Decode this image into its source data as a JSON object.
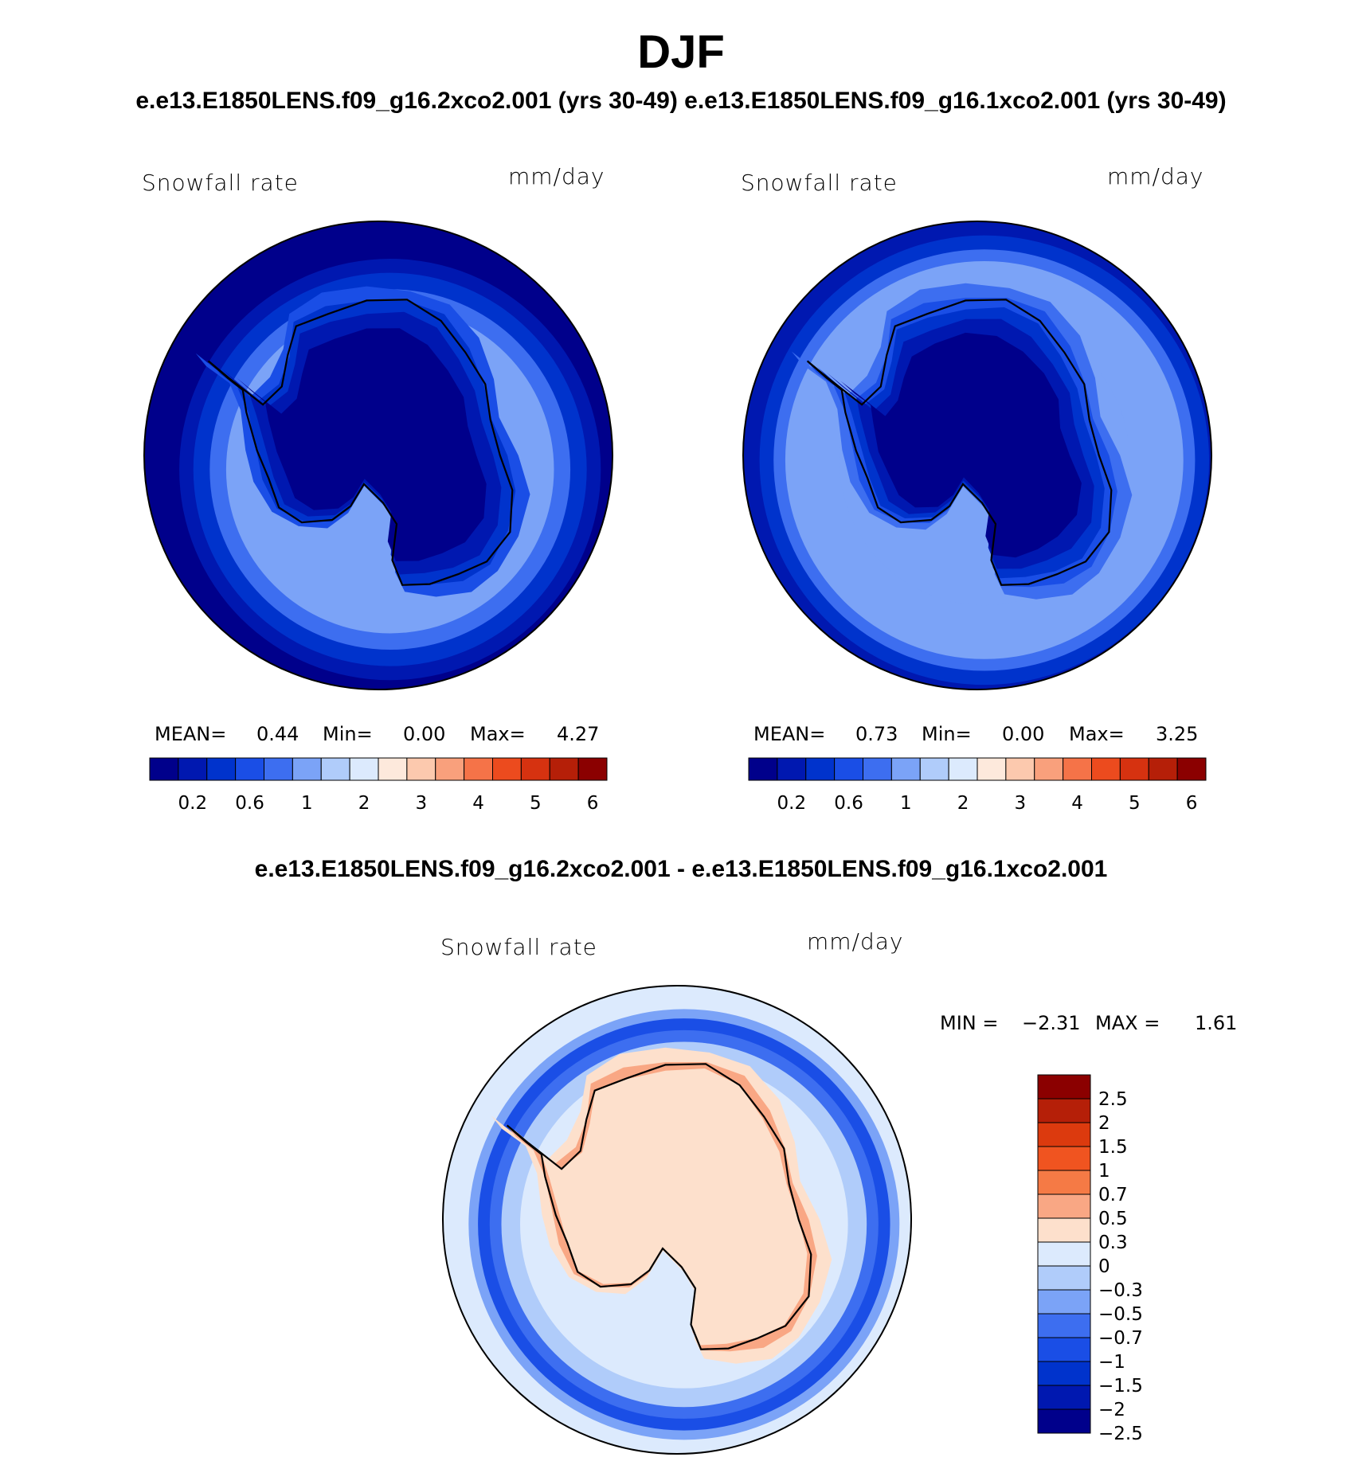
{
  "page": {
    "title": "DJF",
    "subtitle_top": "e.e13.E1850LENS.f09_g16.2xco2.001 (yrs 30-49) e.e13.E1850LENS.f09_g16.1xco2.001 (yrs 30-49)",
    "subtitle_diff": "e.e13.E1850LENS.f09_g16.2xco2.001 - e.e13.E1850LENS.f09_g16.1xco2.001"
  },
  "panels": [
    {
      "variable": "Snowfall rate",
      "units": "mm/day",
      "stats": {
        "mean_label": "MEAN=",
        "mean": "0.44",
        "min_label": "Min=",
        "min": "0.00",
        "max_label": "Max=",
        "max": "4.27"
      }
    },
    {
      "variable": "Snowfall rate",
      "units": "mm/day",
      "stats": {
        "mean_label": "MEAN=",
        "mean": "0.73",
        "min_label": "Min=",
        "min": "0.00",
        "max_label": "Max=",
        "max": "3.25"
      }
    },
    {
      "variable": "Snowfall rate",
      "units": "mm/day",
      "stats": {
        "min_label": "MIN =",
        "min": "−2.31",
        "max_label": "MAX =",
        "max": "1.61"
      }
    }
  ],
  "colorbar_abs": {
    "colors": [
      "#00008b",
      "#0018b0",
      "#0033cc",
      "#1a4ee6",
      "#3d6ef0",
      "#7ba3f7",
      "#b0ccfa",
      "#dceafd",
      "#fde9dc",
      "#fcc9ae",
      "#f9a07c",
      "#f57348",
      "#ec4b1e",
      "#d63210",
      "#b51f08",
      "#8b0000"
    ],
    "tick_labels": [
      "0.2",
      "0.6",
      "1",
      "2",
      "3",
      "4",
      "5",
      "6"
    ]
  },
  "colorbar_diff": {
    "colors": [
      "#8b0000",
      "#b51f08",
      "#dc3a0e",
      "#f05420",
      "#f57a45",
      "#f9a784",
      "#fde0cc",
      "#dceafd",
      "#b0ccfa",
      "#7ba3f7",
      "#3d6ef0",
      "#1a4ee6",
      "#0033cc",
      "#0018b0",
      "#00008b"
    ],
    "tick_labels": [
      "2.5",
      "2",
      "1.5",
      "1",
      "0.7",
      "0.5",
      "0.3",
      "0",
      "−0.3",
      "−0.5",
      "−0.7",
      "−1",
      "−1.5",
      "−2",
      "−2.5"
    ]
  },
  "chart_data": [
    {
      "type": "heatmap",
      "projection": "south-polar-stereographic",
      "variable": "Snowfall rate",
      "units": "mm/day",
      "summary": {
        "mean": 0.44,
        "min": 0.0,
        "max": 4.27
      },
      "contour_levels": [
        0.1,
        0.2,
        0.4,
        0.6,
        0.8,
        1,
        1.5,
        2,
        2.5,
        3,
        3.5,
        4,
        4.5,
        5,
        5.5,
        6
      ]
    },
    {
      "type": "heatmap",
      "projection": "south-polar-stereographic",
      "variable": "Snowfall rate",
      "units": "mm/day",
      "summary": {
        "mean": 0.73,
        "min": 0.0,
        "max": 3.25
      },
      "contour_levels": [
        0.1,
        0.2,
        0.4,
        0.6,
        0.8,
        1,
        1.5,
        2,
        2.5,
        3,
        3.5,
        4,
        4.5,
        5,
        5.5,
        6
      ]
    },
    {
      "type": "heatmap",
      "projection": "south-polar-stereographic",
      "variable": "Snowfall rate",
      "units": "mm/day",
      "summary": {
        "min": -2.31,
        "max": 1.61
      },
      "contour_levels": [
        -2.5,
        -2,
        -1.5,
        -1,
        -0.7,
        -0.5,
        -0.3,
        0,
        0.3,
        0.5,
        0.7,
        1,
        1.5,
        2,
        2.5
      ]
    }
  ]
}
